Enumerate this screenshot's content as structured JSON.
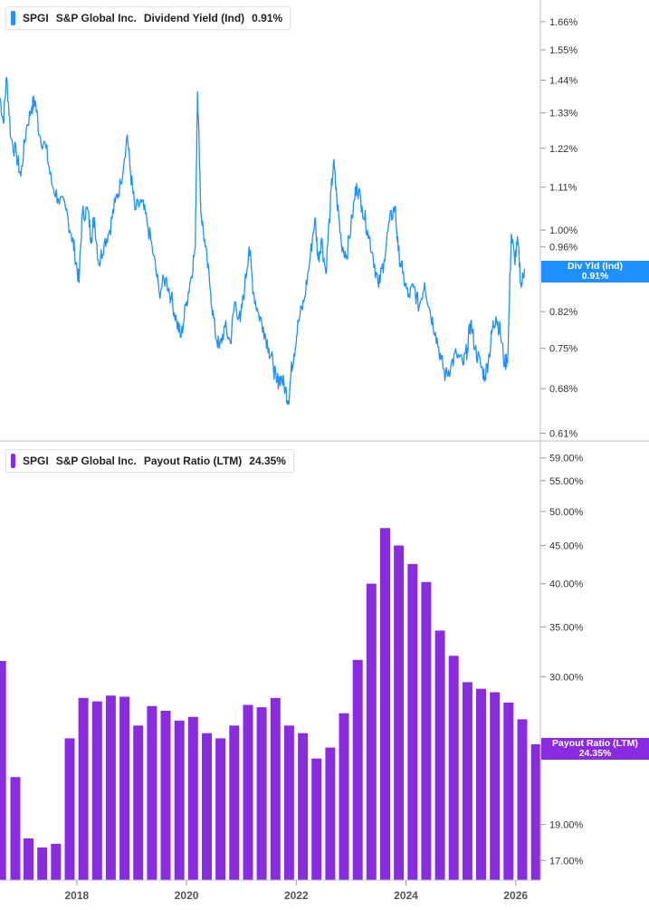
{
  "top_panel": {
    "ticker": "SPGI",
    "company": "S&P Global Inc.",
    "metric": "Dividend Yield (Ind)",
    "value": "0.91%",
    "flag_label": "Div Yld (Ind)",
    "flag_value": "0.91%",
    "color": "#1e90ff"
  },
  "bottom_panel": {
    "ticker": "SPGI",
    "company": "S&P Global Inc.",
    "metric": "Payout Ratio (LTM)",
    "value": "24.35%",
    "flag_label": "Payout Ratio (LTM)",
    "flag_value": "24.35%",
    "color": "#8a2be2"
  },
  "chart_data": [
    {
      "type": "line",
      "series": [
        {
          "name": "Dividend Yield (Ind)",
          "color": "#1e90ff"
        }
      ],
      "x_range": [
        2016.6,
        2026.45
      ],
      "ylim": [
        0.6,
        1.75
      ],
      "y_scale": "log",
      "y_ticks": [
        "1.66%",
        "1.55%",
        "1.44%",
        "1.33%",
        "1.22%",
        "1.11%",
        "1.00%",
        "0.96%",
        "0.82%",
        "0.75%",
        "0.68%",
        "0.61%"
      ],
      "y_tick_values": [
        1.66,
        1.55,
        1.44,
        1.33,
        1.22,
        1.11,
        1.0,
        0.96,
        0.82,
        0.75,
        0.68,
        0.61
      ],
      "points": [
        [
          2016.6,
          1.38
        ],
        [
          2016.66,
          1.3
        ],
        [
          2016.72,
          1.45
        ],
        [
          2016.8,
          1.25
        ],
        [
          2016.9,
          1.2
        ],
        [
          2016.98,
          1.14
        ],
        [
          2017.08,
          1.28
        ],
        [
          2017.18,
          1.35
        ],
        [
          2017.24,
          1.37
        ],
        [
          2017.32,
          1.26
        ],
        [
          2017.44,
          1.22
        ],
        [
          2017.54,
          1.12
        ],
        [
          2017.66,
          1.08
        ],
        [
          2017.8,
          1.05
        ],
        [
          2017.9,
          0.99
        ],
        [
          2017.96,
          0.95
        ],
        [
          2018.04,
          0.88
        ],
        [
          2018.1,
          1.04
        ],
        [
          2018.2,
          1.05
        ],
        [
          2018.26,
          0.98
        ],
        [
          2018.32,
          1.03
        ],
        [
          2018.4,
          0.92
        ],
        [
          2018.5,
          0.97
        ],
        [
          2018.6,
          1.0
        ],
        [
          2018.7,
          1.07
        ],
        [
          2018.8,
          1.12
        ],
        [
          2018.92,
          1.26
        ],
        [
          2018.98,
          1.15
        ],
        [
          2019.06,
          1.05
        ],
        [
          2019.18,
          1.07
        ],
        [
          2019.28,
          1.02
        ],
        [
          2019.4,
          0.94
        ],
        [
          2019.5,
          0.86
        ],
        [
          2019.62,
          0.89
        ],
        [
          2019.72,
          0.85
        ],
        [
          2019.82,
          0.8
        ],
        [
          2019.9,
          0.77
        ],
        [
          2020.0,
          0.84
        ],
        [
          2020.08,
          0.89
        ],
        [
          2020.16,
          0.96
        ],
        [
          2020.2,
          1.4
        ],
        [
          2020.26,
          1.05
        ],
        [
          2020.34,
          0.96
        ],
        [
          2020.44,
          0.86
        ],
        [
          2020.52,
          0.78
        ],
        [
          2020.6,
          0.75
        ],
        [
          2020.7,
          0.79
        ],
        [
          2020.8,
          0.76
        ],
        [
          2020.88,
          0.84
        ],
        [
          2020.98,
          0.8
        ],
        [
          2021.06,
          0.87
        ],
        [
          2021.14,
          0.96
        ],
        [
          2021.22,
          0.86
        ],
        [
          2021.3,
          0.82
        ],
        [
          2021.4,
          0.79
        ],
        [
          2021.5,
          0.75
        ],
        [
          2021.58,
          0.72
        ],
        [
          2021.64,
          0.69
        ],
        [
          2021.72,
          0.7
        ],
        [
          2021.8,
          0.68
        ],
        [
          2021.86,
          0.66
        ],
        [
          2021.92,
          0.72
        ],
        [
          2021.96,
          0.74
        ],
        [
          2022.04,
          0.8
        ],
        [
          2022.14,
          0.84
        ],
        [
          2022.24,
          0.92
        ],
        [
          2022.34,
          1.03
        ],
        [
          2022.4,
          0.93
        ],
        [
          2022.46,
          0.98
        ],
        [
          2022.54,
          0.9
        ],
        [
          2022.62,
          1.06
        ],
        [
          2022.68,
          1.18
        ],
        [
          2022.74,
          1.08
        ],
        [
          2022.82,
          0.97
        ],
        [
          2022.92,
          0.94
        ],
        [
          2023.02,
          1.03
        ],
        [
          2023.1,
          1.12
        ],
        [
          2023.2,
          1.06
        ],
        [
          2023.3,
          1.0
        ],
        [
          2023.4,
          0.94
        ],
        [
          2023.5,
          0.87
        ],
        [
          2023.6,
          0.93
        ],
        [
          2023.7,
          1.02
        ],
        [
          2023.8,
          1.06
        ],
        [
          2023.86,
          0.95
        ],
        [
          2023.94,
          0.9
        ],
        [
          2024.04,
          0.85
        ],
        [
          2024.14,
          0.87
        ],
        [
          2024.24,
          0.83
        ],
        [
          2024.34,
          0.88
        ],
        [
          2024.44,
          0.82
        ],
        [
          2024.54,
          0.78
        ],
        [
          2024.64,
          0.73
        ],
        [
          2024.72,
          0.7
        ],
        [
          2024.82,
          0.72
        ],
        [
          2024.92,
          0.74
        ],
        [
          2025.04,
          0.72
        ],
        [
          2025.12,
          0.75
        ],
        [
          2025.18,
          0.8
        ],
        [
          2025.26,
          0.75
        ],
        [
          2025.36,
          0.72
        ],
        [
          2025.44,
          0.7
        ],
        [
          2025.52,
          0.74
        ],
        [
          2025.58,
          0.79
        ],
        [
          2025.64,
          0.81
        ],
        [
          2025.72,
          0.78
        ],
        [
          2025.8,
          0.72
        ],
        [
          2025.86,
          0.74
        ],
        [
          2025.92,
          0.99
        ],
        [
          2025.98,
          0.93
        ],
        [
          2026.04,
          0.97
        ],
        [
          2026.1,
          0.87
        ],
        [
          2026.16,
          0.91
        ]
      ]
    },
    {
      "type": "bar",
      "series": [
        {
          "name": "Payout Ratio (LTM)",
          "color": "#8a2be2"
        }
      ],
      "x_ticks": [
        "2018",
        "2020",
        "2022",
        "2024",
        "2026"
      ],
      "x_tick_values": [
        2018,
        2020,
        2022,
        2024,
        2026
      ],
      "x_range": [
        2016.6,
        2026.45
      ],
      "ylim": [
        16,
        62
      ],
      "y_scale": "log",
      "y_ticks": [
        "59.00%",
        "55.00%",
        "50.00%",
        "45.00%",
        "40.00%",
        "35.00%",
        "30.00%",
        "19.00%",
        "17.00%"
      ],
      "y_tick_values": [
        59,
        55,
        50,
        45,
        40,
        35,
        30,
        19,
        17
      ],
      "bars": [
        [
          2016.62,
          31.5
        ],
        [
          2016.88,
          22.0
        ],
        [
          2017.12,
          18.2
        ],
        [
          2017.37,
          17.7
        ],
        [
          2017.62,
          17.9
        ],
        [
          2017.87,
          24.8
        ],
        [
          2018.12,
          28.1
        ],
        [
          2018.37,
          27.8
        ],
        [
          2018.62,
          28.3
        ],
        [
          2018.87,
          28.2
        ],
        [
          2019.12,
          25.8
        ],
        [
          2019.37,
          27.4
        ],
        [
          2019.62,
          27.0
        ],
        [
          2019.87,
          26.2
        ],
        [
          2020.12,
          26.5
        ],
        [
          2020.37,
          25.2
        ],
        [
          2020.62,
          24.8
        ],
        [
          2020.87,
          25.8
        ],
        [
          2021.12,
          27.5
        ],
        [
          2021.37,
          27.3
        ],
        [
          2021.62,
          28.1
        ],
        [
          2021.87,
          25.8
        ],
        [
          2022.12,
          25.2
        ],
        [
          2022.37,
          23.3
        ],
        [
          2022.62,
          24.1
        ],
        [
          2022.87,
          26.8
        ],
        [
          2023.12,
          31.6
        ],
        [
          2023.37,
          40.0
        ],
        [
          2023.62,
          47.5
        ],
        [
          2023.87,
          45.0
        ],
        [
          2024.12,
          42.5
        ],
        [
          2024.37,
          40.2
        ],
        [
          2024.62,
          34.6
        ],
        [
          2024.87,
          32.0
        ],
        [
          2025.12,
          29.5
        ],
        [
          2025.37,
          28.9
        ],
        [
          2025.62,
          28.6
        ],
        [
          2025.87,
          27.7
        ],
        [
          2026.12,
          26.3
        ],
        [
          2026.37,
          24.35
        ]
      ]
    }
  ]
}
